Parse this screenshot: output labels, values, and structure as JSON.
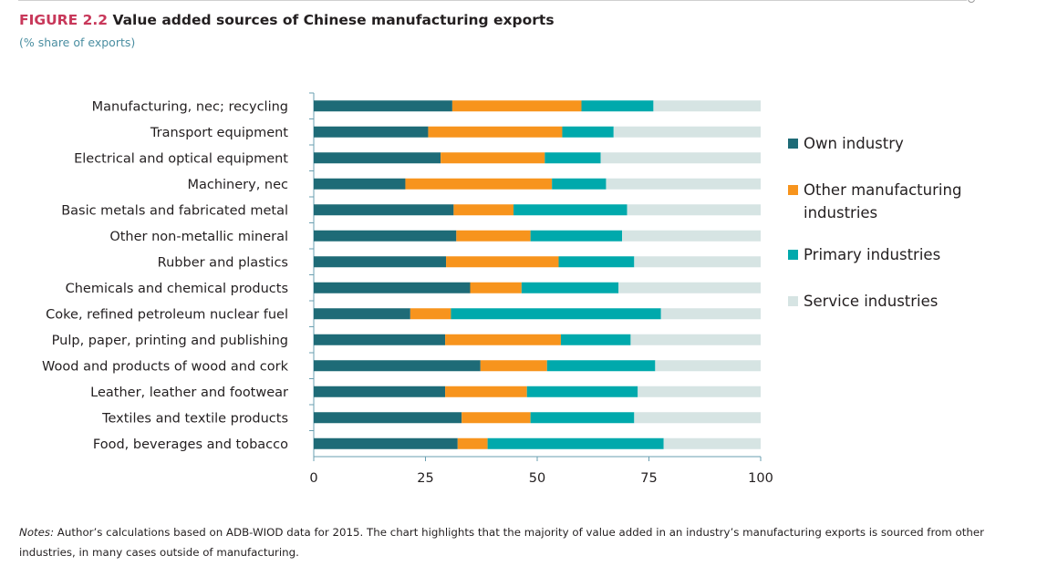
{
  "figure_label": "FIGURE 2.2",
  "title": "Value added sources of Chinese manufacturing exports",
  "subtitle": "(% share of exports)",
  "notes_label": "Notes:",
  "notes_text": " Author’s calculations based on ADB-WIOD data for 2015. The chart highlights that the majority of value added in an industry’s manufacturing exports is sourced from other industries, in many cases outside of manufacturing.",
  "chart_data": {
    "type": "bar",
    "orientation": "horizontal",
    "stacked": true,
    "title": "Value added sources of Chinese manufacturing exports",
    "subtitle": "(% share of exports)",
    "xlabel": "",
    "ylabel": "",
    "xlim": [
      0,
      100
    ],
    "xticks": [
      0,
      25,
      50,
      75,
      100
    ],
    "grid": false,
    "legend_position": "right",
    "categories": [
      "Manufacturing, nec; recycling",
      "Transport equipment",
      "Electrical and optical equipment",
      "Machinery, nec",
      "Basic metals and fabricated metal",
      "Other non-metallic mineral",
      "Rubber and plastics",
      "Chemicals and chemical products",
      "Coke, refined petroleum nuclear fuel",
      "Pulp, paper, printing and publishing",
      "Wood and products of wood and cork",
      "Leather, leather and footwear",
      "Textiles and textile products",
      "Food, beverages and tobacco"
    ],
    "series": [
      {
        "name": "Own industry",
        "color": "#1e6b77",
        "values": [
          31.0,
          25.6,
          28.4,
          20.5,
          31.3,
          31.9,
          29.6,
          35.0,
          21.6,
          29.4,
          37.3,
          29.4,
          33.1,
          32.2
        ]
      },
      {
        "name": "Other manufacturing industries",
        "color": "#f7941d",
        "values": [
          28.9,
          30.0,
          23.3,
          32.8,
          13.4,
          16.6,
          25.2,
          11.5,
          9.1,
          25.9,
          14.9,
          18.3,
          15.4,
          6.7
        ]
      },
      {
        "name": "Primary industries",
        "color": "#00a9ac",
        "values": [
          16.1,
          11.5,
          12.5,
          12.1,
          25.4,
          20.5,
          16.9,
          21.7,
          47.0,
          15.6,
          24.2,
          24.8,
          23.2,
          39.4
        ]
      },
      {
        "name": "Service industries",
        "color": "#d6e4e3",
        "values": [
          24.0,
          32.9,
          35.8,
          34.6,
          29.9,
          31.0,
          28.3,
          31.8,
          22.3,
          29.1,
          23.6,
          27.5,
          28.3,
          21.7
        ]
      }
    ]
  }
}
